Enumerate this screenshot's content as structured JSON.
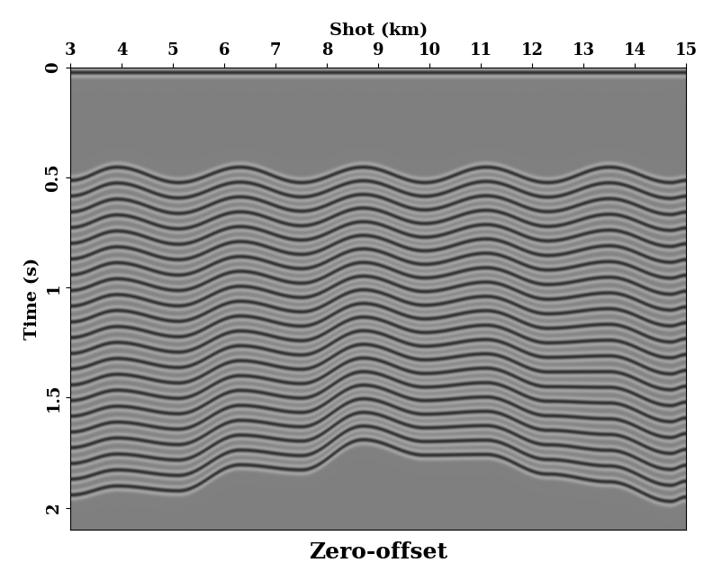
{
  "chart_data": {
    "type": "seismic_section",
    "title": "Zero-offset",
    "x_label": "Shot (km)",
    "y_label": "Time (s)",
    "xlim": [
      3,
      15
    ],
    "ylim": [
      2.1,
      0
    ],
    "xticks": [
      3,
      4,
      5,
      6,
      7,
      8,
      9,
      10,
      11,
      12,
      13,
      14,
      15
    ],
    "yticks": [
      0,
      0.5,
      1,
      1.5,
      2
    ],
    "events": [
      {
        "x": [
          3,
          15
        ],
        "values": [
          0.025,
          0.025
        ]
      },
      {
        "x": [
          3.0,
          3.9,
          5.1,
          6.3,
          7.5,
          8.7,
          9.9,
          11.1,
          12.3,
          13.5,
          14.7,
          15.0
        ],
        "values": [
          0.515,
          0.455,
          0.525,
          0.455,
          0.525,
          0.455,
          0.525,
          0.455,
          0.525,
          0.455,
          0.525,
          0.515
        ]
      },
      {
        "x": [
          3.0,
          3.9,
          5.1,
          6.3,
          7.5,
          8.7,
          9.9,
          11.1,
          12.3,
          13.5,
          14.7,
          15.0
        ],
        "values": [
          0.586,
          0.527,
          0.595,
          0.523,
          0.59,
          0.517,
          0.587,
          0.52,
          0.591,
          0.526,
          0.597,
          0.587
        ]
      },
      {
        "x": [
          3.0,
          3.9,
          5.1,
          6.3,
          7.5,
          8.7,
          9.9,
          11.1,
          12.3,
          13.5,
          14.7,
          15.0
        ],
        "values": [
          0.658,
          0.6,
          0.665,
          0.59,
          0.655,
          0.579,
          0.649,
          0.585,
          0.657,
          0.598,
          0.67,
          0.659
        ]
      },
      {
        "x": [
          3.0,
          3.9,
          5.1,
          6.3,
          7.5,
          8.7,
          9.9,
          11.1,
          12.3,
          13.5,
          14.7,
          15.0
        ],
        "values": [
          0.729,
          0.672,
          0.735,
          0.658,
          0.721,
          0.641,
          0.711,
          0.651,
          0.724,
          0.669,
          0.742,
          0.731
        ]
      },
      {
        "x": [
          3.0,
          3.9,
          5.1,
          6.3,
          7.5,
          8.7,
          9.9,
          11.1,
          12.3,
          13.5,
          14.7,
          15.0
        ],
        "values": [
          0.801,
          0.745,
          0.805,
          0.725,
          0.786,
          0.703,
          0.773,
          0.716,
          0.79,
          0.741,
          0.815,
          0.803
        ]
      },
      {
        "x": [
          3.0,
          3.9,
          5.1,
          6.3,
          7.5,
          8.7,
          9.9,
          11.1,
          12.3,
          13.5,
          14.7,
          15.0
        ],
        "values": [
          0.872,
          0.817,
          0.875,
          0.793,
          0.851,
          0.765,
          0.835,
          0.781,
          0.856,
          0.812,
          0.887,
          0.875
        ]
      },
      {
        "x": [
          3.0,
          3.9,
          5.1,
          6.3,
          7.5,
          8.7,
          9.9,
          11.1,
          12.3,
          13.5,
          14.7,
          15.0
        ],
        "values": [
          0.944,
          0.889,
          0.945,
          0.861,
          0.916,
          0.826,
          0.896,
          0.846,
          0.922,
          0.884,
          0.959,
          0.946
        ]
      },
      {
        "x": [
          3.0,
          3.9,
          5.1,
          6.3,
          7.5,
          8.7,
          9.9,
          11.1,
          12.3,
          13.5,
          14.7,
          15.0
        ],
        "values": [
          1.015,
          0.962,
          1.015,
          0.928,
          0.982,
          0.888,
          0.958,
          0.912,
          0.988,
          0.955,
          1.032,
          1.018
        ]
      },
      {
        "x": [
          3.0,
          3.9,
          5.1,
          6.3,
          7.5,
          8.7,
          9.9,
          11.1,
          12.3,
          13.5,
          14.7,
          15.0
        ],
        "values": [
          1.086,
          1.034,
          1.085,
          0.996,
          1.047,
          0.95,
          1.02,
          0.977,
          1.055,
          1.026,
          1.104,
          1.09
        ]
      },
      {
        "x": [
          3.0,
          3.9,
          5.1,
          6.3,
          7.5,
          8.7,
          9.9,
          11.1,
          12.3,
          13.5,
          14.7,
          15.0
        ],
        "values": [
          1.158,
          1.106,
          1.155,
          1.064,
          1.112,
          1.012,
          1.082,
          1.042,
          1.121,
          1.098,
          1.176,
          1.162
        ]
      },
      {
        "x": [
          3.0,
          3.9,
          5.1,
          6.3,
          7.5,
          8.7,
          9.9,
          11.1,
          12.3,
          13.5,
          14.7,
          15.0
        ],
        "values": [
          1.229,
          1.179,
          1.225,
          1.131,
          1.177,
          1.074,
          1.144,
          1.107,
          1.187,
          1.169,
          1.249,
          1.234
        ]
      },
      {
        "x": [
          3.0,
          3.9,
          5.1,
          6.3,
          7.5,
          8.7,
          9.9,
          11.1,
          12.3,
          13.5,
          14.7,
          15.0
        ],
        "values": [
          1.301,
          1.251,
          1.295,
          1.199,
          1.243,
          1.136,
          1.206,
          1.173,
          1.253,
          1.241,
          1.321,
          1.306
        ]
      },
      {
        "x": [
          3.0,
          3.9,
          5.1,
          6.3,
          7.5,
          8.7,
          9.9,
          11.1,
          12.3,
          13.5,
          14.7,
          15.0
        ],
        "values": [
          1.372,
          1.324,
          1.365,
          1.266,
          1.308,
          1.198,
          1.268,
          1.238,
          1.319,
          1.312,
          1.394,
          1.378
        ]
      },
      {
        "x": [
          3.0,
          3.9,
          5.1,
          6.3,
          7.5,
          8.7,
          9.9,
          11.1,
          12.3,
          13.5,
          14.7,
          15.0
        ],
        "values": [
          1.444,
          1.396,
          1.435,
          1.334,
          1.373,
          1.26,
          1.33,
          1.303,
          1.385,
          1.384,
          1.466,
          1.45
        ]
      },
      {
        "x": [
          3.0,
          3.9,
          5.1,
          6.3,
          7.5,
          8.7,
          9.9,
          11.1,
          12.3,
          13.5,
          14.7,
          15.0
        ],
        "values": [
          1.515,
          1.468,
          1.505,
          1.402,
          1.438,
          1.322,
          1.392,
          1.368,
          1.452,
          1.455,
          1.538,
          1.522
        ]
      },
      {
        "x": [
          3.0,
          3.9,
          5.1,
          6.3,
          7.5,
          8.7,
          9.9,
          11.1,
          12.3,
          13.5,
          14.7,
          15.0
        ],
        "values": [
          1.586,
          1.541,
          1.575,
          1.469,
          1.504,
          1.384,
          1.454,
          1.434,
          1.518,
          1.526,
          1.611,
          1.594
        ]
      },
      {
        "x": [
          3.0,
          3.9,
          5.1,
          6.3,
          7.5,
          8.7,
          9.9,
          11.1,
          12.3,
          13.5,
          14.7,
          15.0
        ],
        "values": [
          1.658,
          1.613,
          1.645,
          1.537,
          1.569,
          1.445,
          1.515,
          1.499,
          1.584,
          1.598,
          1.683,
          1.665
        ]
      },
      {
        "x": [
          3.0,
          3.9,
          5.1,
          6.3,
          7.5,
          8.7,
          9.9,
          11.1,
          12.3,
          13.5,
          14.7,
          15.0
        ],
        "values": [
          1.729,
          1.685,
          1.715,
          1.605,
          1.634,
          1.507,
          1.577,
          1.564,
          1.65,
          1.669,
          1.755,
          1.737
        ]
      },
      {
        "x": [
          3.0,
          3.9,
          5.1,
          6.3,
          7.5,
          8.7,
          9.9,
          11.1,
          12.3,
          13.5,
          14.7,
          15.0
        ],
        "values": [
          1.801,
          1.758,
          1.785,
          1.672,
          1.699,
          1.569,
          1.639,
          1.629,
          1.716,
          1.741,
          1.828,
          1.809
        ]
      },
      {
        "x": [
          3.0,
          3.9,
          5.1,
          6.3,
          7.5,
          8.7,
          9.9,
          11.1,
          12.3,
          13.5,
          14.7,
          15.0
        ],
        "values": [
          1.872,
          1.83,
          1.855,
          1.74,
          1.765,
          1.631,
          1.701,
          1.695,
          1.783,
          1.812,
          1.9,
          1.881
        ]
      },
      {
        "x": [
          3.0,
          3.9,
          5.1,
          6.3,
          7.5,
          8.7,
          9.9,
          11.1,
          12.3,
          13.5,
          14.7,
          15.0
        ],
        "values": [
          1.944,
          1.903,
          1.925,
          1.807,
          1.83,
          1.693,
          1.763,
          1.76,
          1.849,
          1.884,
          1.973,
          1.953
        ]
      }
    ]
  }
}
